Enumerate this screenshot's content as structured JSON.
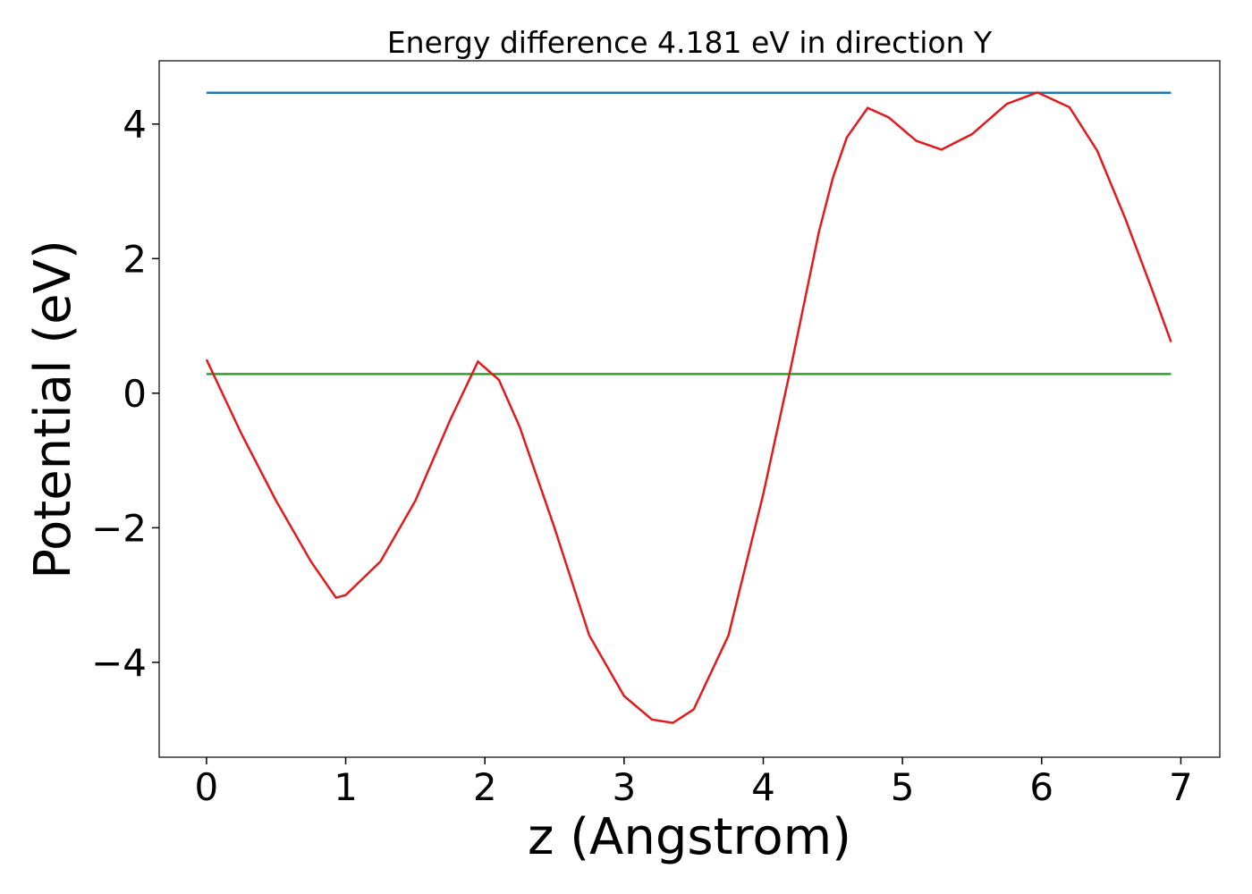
{
  "chart_data": {
    "type": "line",
    "title": "Energy difference 4.181 eV in direction Y",
    "xlabel": "z (Angstrom)",
    "ylabel": "Potential (eV)",
    "xlim": [
      -0.34,
      7.28
    ],
    "ylim": [
      -5.41,
      4.94
    ],
    "xticks": [
      0,
      1,
      2,
      3,
      4,
      5,
      6,
      7
    ],
    "yticks": [
      {
        "value": -4,
        "label": "−4"
      },
      {
        "value": -2,
        "label": "−2"
      },
      0,
      2,
      4
    ],
    "grid": false,
    "series": [
      {
        "color": "#1f77b4",
        "x": [
          0,
          6.93
        ],
        "values": [
          4.465,
          4.465
        ]
      },
      {
        "color": "#2ca02c",
        "x": [
          0,
          6.93
        ],
        "values": [
          0.284,
          0.284
        ]
      },
      {
        "color": "#e31a1c",
        "x": [
          0,
          0.25,
          0.5,
          0.75,
          0.93,
          1.0,
          1.25,
          1.5,
          1.75,
          1.95,
          2.1,
          2.25,
          2.5,
          2.75,
          3.0,
          3.2,
          3.35,
          3.5,
          3.75,
          4.0,
          4.2,
          4.4,
          4.5,
          4.6,
          4.75,
          4.9,
          5.1,
          5.28,
          5.5,
          5.75,
          5.97,
          6.2,
          6.4,
          6.6,
          6.8,
          6.93
        ],
        "values": [
          0.5,
          -0.6,
          -1.6,
          -2.5,
          -3.04,
          -3.0,
          -2.5,
          -1.6,
          -0.4,
          0.47,
          0.2,
          -0.5,
          -2.0,
          -3.6,
          -4.5,
          -4.85,
          -4.9,
          -4.7,
          -3.6,
          -1.5,
          0.4,
          2.4,
          3.2,
          3.8,
          4.24,
          4.1,
          3.75,
          3.62,
          3.85,
          4.3,
          4.47,
          4.25,
          3.6,
          2.6,
          1.5,
          0.76
        ]
      }
    ]
  }
}
